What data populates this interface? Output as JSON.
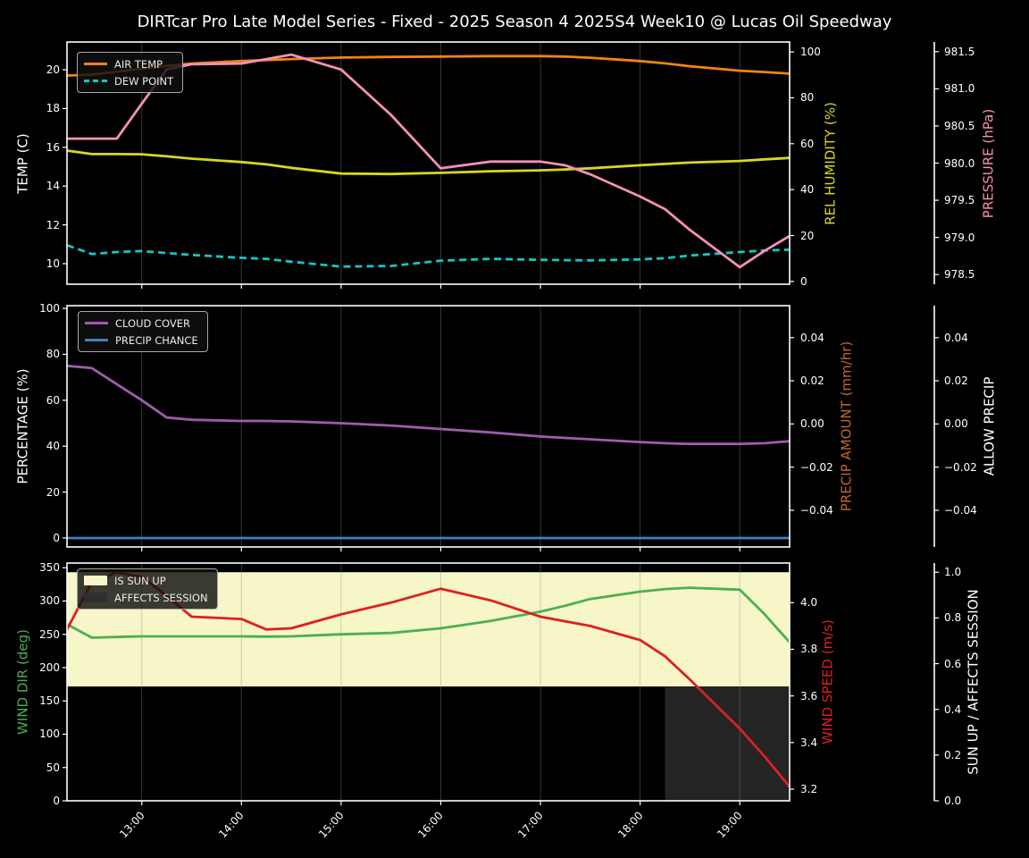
{
  "title": "DIRTcar Pro Late Model Series - Fixed - 2025 Season 4 2025S4 Week10 @ Lucas Oil Speedway",
  "colors": {
    "background": "#000000",
    "spine": "#ffffff",
    "tick_label": "#ffffff",
    "grid": "rgba(140,140,140,0.38)",
    "air_temp": "#f28410",
    "dew_point": "#15c5c5",
    "rel_humidity": "#d7d722",
    "pressure": "#f48fb8",
    "cloud_cover": "#a05cac",
    "precip_chance": "#4080c0",
    "precip_amount_label": "#c2662d",
    "wind_dir": "#4caf50",
    "wind_speed": "#e01f1f",
    "sun_up_fill": "#f6f6c9",
    "affects_session_fill": "#242424",
    "legend_text": "#ececec"
  },
  "x_axis": {
    "range": [
      12.25,
      19.5
    ],
    "tick_values": [
      13,
      14,
      15,
      16,
      17,
      18,
      19
    ],
    "tick_labels": [
      "13:00",
      "14:00",
      "15:00",
      "16:00",
      "17:00",
      "18:00",
      "19:00"
    ],
    "times": [
      12.25,
      12.5,
      12.75,
      13,
      13.25,
      13.5,
      14,
      14.25,
      14.5,
      15,
      15.5,
      16,
      16.5,
      17,
      17.25,
      17.5,
      18,
      18.25,
      18.5,
      19,
      19.25,
      19.5
    ]
  },
  "chart_data": [
    {
      "type": "line",
      "name": "temperature-panel",
      "axes": {
        "left": {
          "label": "TEMP (C)",
          "color": "#ffffff",
          "domain": [
            8.94,
            21.43
          ],
          "tick_values": [
            10,
            12,
            14,
            16,
            18,
            20
          ],
          "tick_labels": [
            "10",
            "12",
            "14",
            "16",
            "18",
            "20"
          ]
        },
        "right": {
          "label": "REL HUMIDITY (%)",
          "color": "#d7d722",
          "domain": [
            -1.2,
            104.3
          ],
          "tick_values": [
            0,
            20,
            40,
            60,
            80,
            100
          ],
          "tick_labels": [
            "0",
            "20",
            "40",
            "60",
            "80",
            "100"
          ]
        },
        "far": {
          "label": "PRESSURE (hPa)",
          "color": "#f48fb8",
          "domain": [
            978.37,
            981.63
          ],
          "tick_values": [
            978.5,
            979.0,
            979.5,
            980.0,
            980.5,
            981.0,
            981.5
          ],
          "tick_labels": [
            "978.5",
            "979.0",
            "979.5",
            "980.0",
            "980.5",
            "981.0",
            "981.5"
          ]
        }
      },
      "legend": [
        {
          "label": "AIR TEMP",
          "color": "#f28410",
          "style": "line"
        },
        {
          "label": "DEW POINT",
          "color": "#15c5c5",
          "style": "dashed"
        }
      ],
      "series": [
        {
          "name": "air-temp",
          "axis": "left",
          "color": "#f28410",
          "dash": null,
          "values": [
            19.7,
            19.75,
            19.9,
            20.05,
            20.2,
            20.32,
            20.45,
            20.5,
            20.55,
            20.63,
            20.66,
            20.68,
            20.7,
            20.7,
            20.68,
            20.62,
            20.45,
            20.33,
            20.18,
            19.95,
            19.88,
            19.8
          ]
        },
        {
          "name": "dew-point",
          "axis": "left",
          "color": "#15c5c5",
          "dash": "8 5",
          "values": [
            10.95,
            10.5,
            10.6,
            10.65,
            10.55,
            10.45,
            10.3,
            10.25,
            10.1,
            9.85,
            9.88,
            10.15,
            10.25,
            10.2,
            10.18,
            10.17,
            10.22,
            10.28,
            10.42,
            10.6,
            10.68,
            10.72
          ]
        },
        {
          "name": "rel-humidity",
          "axis": "right",
          "color": "#d7d722",
          "dash": null,
          "values": [
            57,
            55.5,
            55.5,
            55.4,
            54.5,
            53.5,
            52,
            51,
            49.5,
            47,
            46.8,
            47.3,
            48,
            48.4,
            48.8,
            49.3,
            50.6,
            51.2,
            51.8,
            52.5,
            53.2,
            53.8
          ]
        },
        {
          "name": "pressure",
          "axis": "far",
          "color": "#f48fb8",
          "dash": null,
          "values": [
            980.33,
            980.33,
            980.33,
            980.8,
            981.26,
            981.33,
            981.34,
            981.4,
            981.46,
            981.26,
            980.65,
            979.93,
            980.02,
            980.02,
            979.97,
            979.85,
            979.55,
            979.38,
            979.1,
            978.6,
            978.82,
            979.02
          ]
        }
      ]
    },
    {
      "type": "line",
      "name": "precipitation-panel",
      "axes": {
        "left": {
          "label": "PERCENTAGE (%)",
          "color": "#ffffff",
          "domain": [
            -3.9,
            101.2
          ],
          "tick_values": [
            0,
            20,
            40,
            60,
            80,
            100
          ],
          "tick_labels": [
            "0",
            "20",
            "40",
            "60",
            "80",
            "100"
          ]
        },
        "right": {
          "label": "PRECIP AMOUNT (mm/hr)",
          "color": "#c2662d",
          "domain": [
            -0.057,
            0.0548
          ],
          "tick_values": [
            -0.04,
            -0.02,
            0,
            0.02,
            0.04
          ],
          "tick_labels": [
            "−0.04",
            "−0.02",
            "0.00",
            "0.02",
            "0.04"
          ]
        },
        "far": {
          "label": "ALLOW PRECIP",
          "color": "#ffffff",
          "domain": [
            -0.057,
            0.0548
          ],
          "tick_values": [
            -0.04,
            -0.02,
            0,
            0.02,
            0.04
          ],
          "tick_labels": [
            "−0.04",
            "−0.02",
            "0.00",
            "0.02",
            "0.04"
          ]
        }
      },
      "legend": [
        {
          "label": "CLOUD COVER",
          "color": "#a05cac",
          "style": "line"
        },
        {
          "label": "PRECIP CHANCE",
          "color": "#4080c0",
          "style": "line"
        }
      ],
      "series": [
        {
          "name": "cloud-cover",
          "axis": "left",
          "color": "#a05cac",
          "dash": null,
          "values": [
            75,
            74,
            67,
            60,
            52.5,
            51.5,
            51,
            51,
            50.8,
            50,
            49,
            47.5,
            46,
            44.2,
            43.6,
            43,
            41.8,
            41.3,
            41,
            41,
            41.3,
            42.2
          ]
        },
        {
          "name": "precip-chance",
          "axis": "left",
          "color": "#4080c0",
          "dash": null,
          "values": [
            0,
            0,
            0,
            0,
            0,
            0,
            0,
            0,
            0,
            0,
            0,
            0,
            0,
            0,
            0,
            0,
            0,
            0,
            0,
            0,
            0,
            0
          ]
        }
      ]
    },
    {
      "type": "line",
      "name": "wind-panel",
      "axes": {
        "left": {
          "label": "WIND DIR (deg)",
          "color": "#4caf50",
          "domain": [
            0,
            357
          ],
          "tick_values": [
            0,
            50,
            100,
            150,
            200,
            250,
            300,
            350
          ],
          "tick_labels": [
            "0",
            "50",
            "100",
            "150",
            "200",
            "250",
            "300",
            "350"
          ]
        },
        "right": {
          "label": "WIND SPEED (m/s)",
          "color": "#e01f1f",
          "domain": [
            3.15,
            4.17
          ],
          "tick_values": [
            3.2,
            3.4,
            3.6,
            3.8,
            4.0
          ],
          "tick_labels": [
            "3.2",
            "3.4",
            "3.6",
            "3.8",
            "4.0"
          ]
        },
        "far": {
          "label": "SUN UP / AFFECTS SESSION",
          "color": "#ffffff",
          "domain": [
            0,
            1.04
          ],
          "tick_values": [
            0,
            0.2,
            0.4,
            0.6,
            0.8,
            1.0
          ],
          "tick_labels": [
            "0.0",
            "0.2",
            "0.4",
            "0.6",
            "0.8",
            "1.0"
          ]
        }
      },
      "legend": [
        {
          "label": "IS SUN UP",
          "color": "#f6f6c9",
          "style": "patch"
        },
        {
          "label": "AFFECTS SESSION",
          "color": "#2e2e2e",
          "style": "patch"
        }
      ],
      "fills": [
        {
          "name": "is-sun-up",
          "axis": "far",
          "t0": 12.25,
          "t1": 19.5,
          "band": [
            0.5,
            1.0
          ],
          "color": "#f6f6c9",
          "value": 1
        },
        {
          "name": "affects-session",
          "axis": "far",
          "t0": 18.25,
          "t1": 19.5,
          "band": [
            0.0,
            0.5
          ],
          "color": "#242424",
          "value": 1
        }
      ],
      "series": [
        {
          "name": "wind-dir",
          "axis": "left",
          "color": "#4caf50",
          "dash": null,
          "values": [
            265,
            245,
            246,
            247,
            247,
            247,
            247,
            246.5,
            247,
            250,
            252,
            259,
            270,
            284,
            293,
            303,
            314,
            318,
            320,
            317,
            280,
            238
          ]
        },
        {
          "name": "wind-speed",
          "axis": "right",
          "color": "#e01f1f",
          "dash": null,
          "values": [
            3.885,
            4.09,
            4.13,
            4.11,
            4.03,
            3.94,
            3.93,
            3.885,
            3.89,
            3.95,
            4.0,
            4.06,
            4.01,
            3.94,
            3.92,
            3.9,
            3.84,
            3.77,
            3.67,
            3.46,
            3.34,
            3.21
          ]
        }
      ]
    }
  ]
}
